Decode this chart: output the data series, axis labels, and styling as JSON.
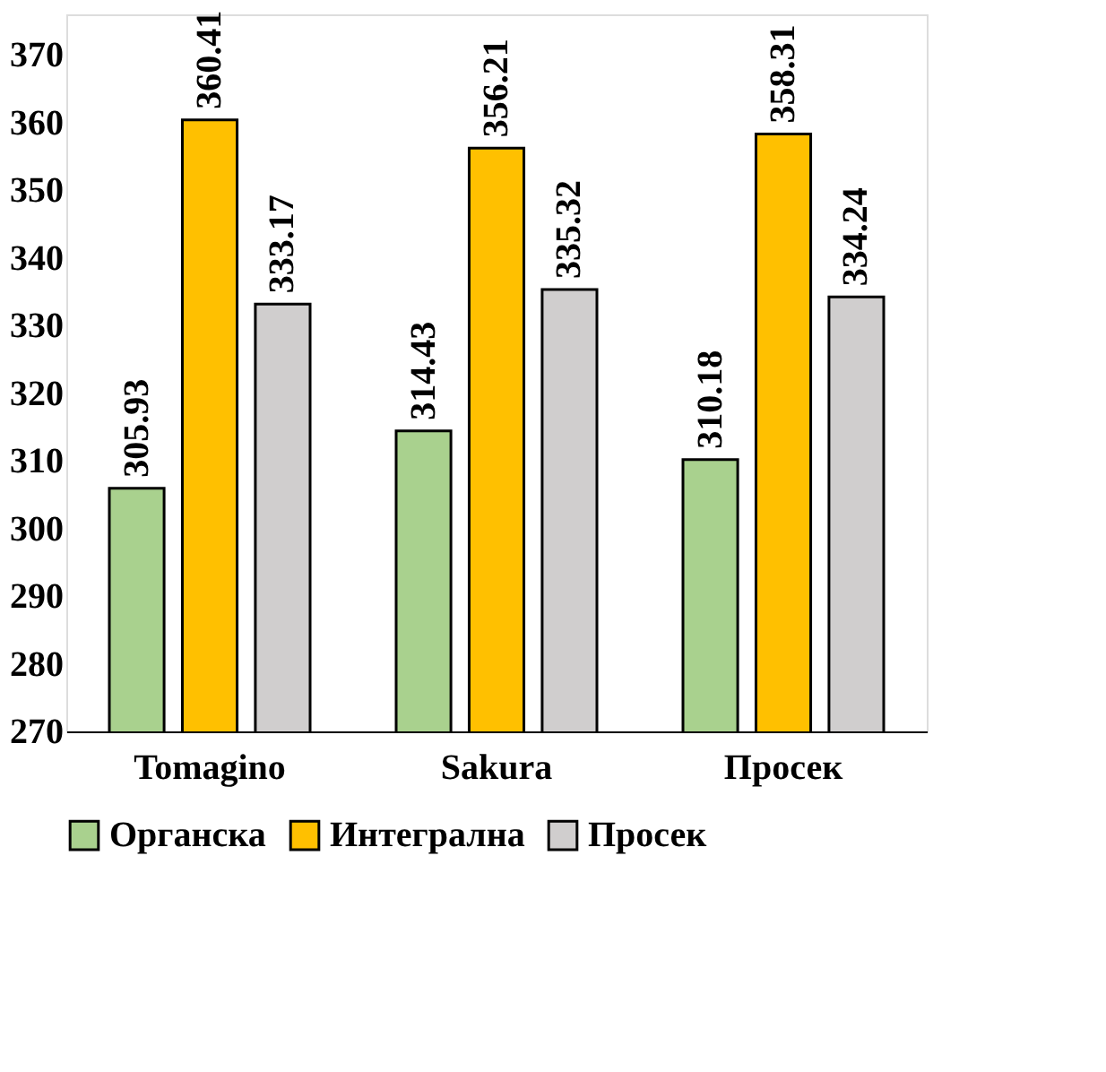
{
  "chart_data": {
    "type": "bar",
    "categories": [
      "Tomagino",
      "Sakura",
      "Просек"
    ],
    "series": [
      {
        "name": "Органска",
        "color": "#a9d18e",
        "values": [
          305.93,
          314.43,
          310.18
        ]
      },
      {
        "name": "Интегрална",
        "color": "#ffc000",
        "values": [
          360.41,
          356.21,
          358.31
        ]
      },
      {
        "name": "Просек",
        "color": "#d0cece",
        "values": [
          333.17,
          335.32,
          334.24
        ]
      }
    ],
    "ylim": [
      270,
      376
    ],
    "yticks": [
      270,
      280,
      290,
      300,
      310,
      320,
      330,
      340,
      350,
      360,
      370
    ],
    "data_labels": true,
    "grid": false,
    "legend": "bottom"
  }
}
